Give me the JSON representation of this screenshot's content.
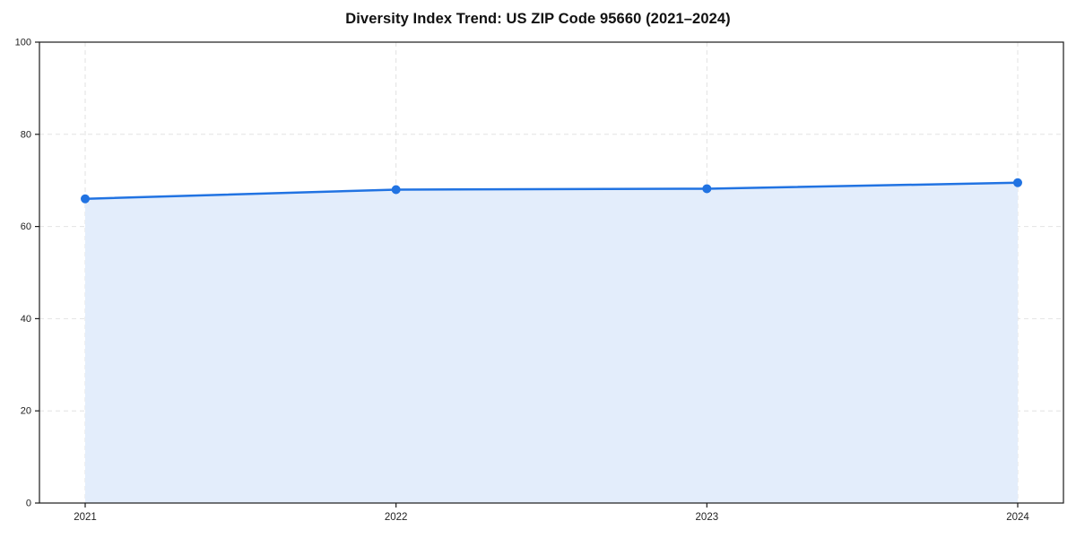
{
  "title": "Diversity Index Trend: US ZIP Code 95660 (2021–2024)",
  "chart_data": {
    "type": "area",
    "categories": [
      "2021",
      "2022",
      "2023",
      "2024"
    ],
    "series": [
      {
        "name": "Diversity Index",
        "values": [
          66,
          68,
          68.2,
          69.5
        ]
      }
    ],
    "title": "Diversity Index Trend: US ZIP Code 95660 (2021–2024)",
    "xlabel": "",
    "ylabel": "",
    "ylim": [
      0,
      100
    ],
    "y_ticks": [
      0,
      20,
      40,
      60,
      80,
      100
    ],
    "grid": true,
    "legend_position": "none",
    "colors": {
      "line": "#2173e2",
      "marker": "#2173e2",
      "fill": "#e3edfb",
      "grid": "#e2e2e2",
      "axis": "#1a1a1a",
      "tick_label": "#222222"
    }
  }
}
